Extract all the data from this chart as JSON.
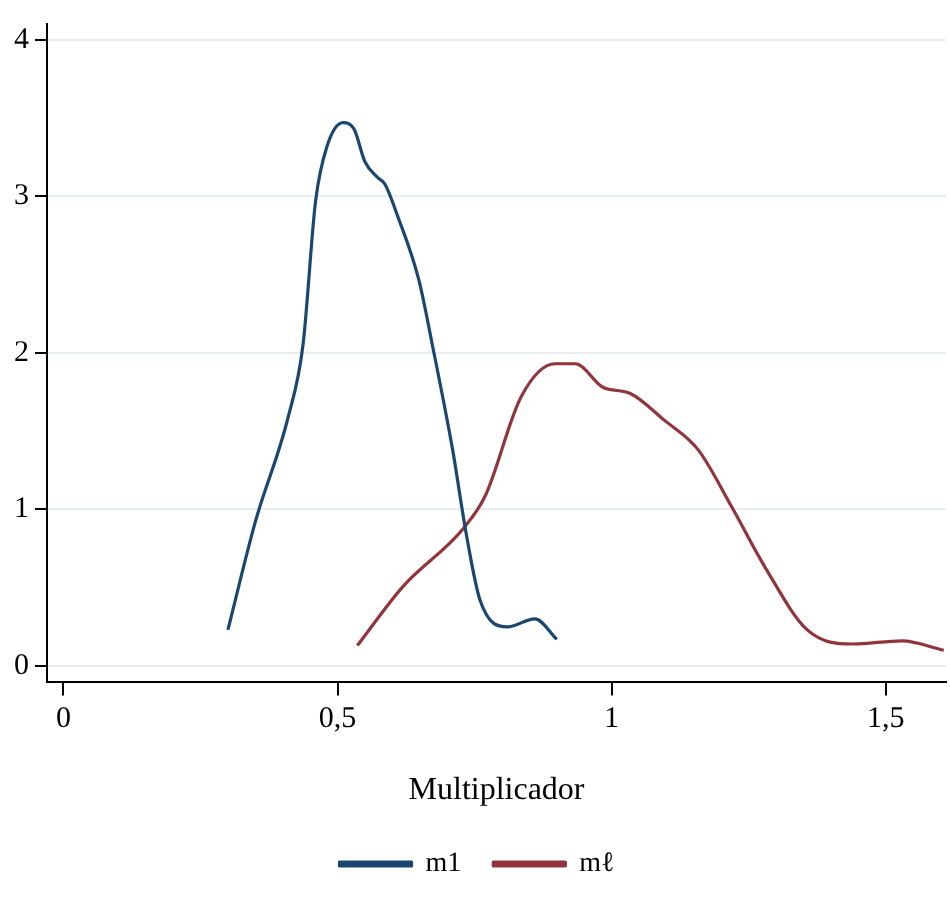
{
  "chart_data": {
    "type": "line",
    "xlabel": "Multiplicador",
    "xlim": [
      -0.03,
      1.61
    ],
    "xticks": [
      0,
      {
        "value": 0.5,
        "label": "0,5"
      },
      1,
      {
        "value": 1.5,
        "label": "1,5"
      }
    ],
    "ylim": [
      -0.1,
      4.1
    ],
    "yticks": [
      0,
      1,
      2,
      3,
      4
    ],
    "grid": "y",
    "legend": "bottom",
    "marker": "none",
    "line_style": "solid",
    "series": [
      {
        "name": "m1",
        "color": "#1a476f",
        "x": [
          0.3,
          0.35,
          0.41,
          0.437,
          0.46,
          0.48,
          0.51,
          0.53,
          0.55,
          0.573,
          0.586,
          0.61,
          0.648,
          0.673,
          0.71,
          0.735,
          0.76,
          0.81,
          0.86,
          0.9
        ],
        "values": [
          0.23,
          0.92,
          1.59,
          2.05,
          2.97,
          3.31,
          3.47,
          3.43,
          3.22,
          3.12,
          3.08,
          2.87,
          2.47,
          2.05,
          1.38,
          0.84,
          0.42,
          0.25,
          0.3,
          0.17
        ]
      },
      {
        "name": "mℓ",
        "color": "#90353b",
        "x": [
          0.536,
          0.62,
          0.73,
          0.77,
          0.835,
          0.897,
          0.934,
          0.984,
          1.034,
          1.096,
          1.158,
          1.22,
          1.28,
          1.357,
          1.44,
          1.53,
          1.606
        ],
        "values": [
          0.13,
          0.51,
          0.88,
          1.09,
          1.72,
          1.93,
          1.93,
          1.78,
          1.74,
          1.57,
          1.38,
          1.01,
          0.63,
          0.23,
          0.14,
          0.16,
          0.1
        ]
      }
    ]
  }
}
